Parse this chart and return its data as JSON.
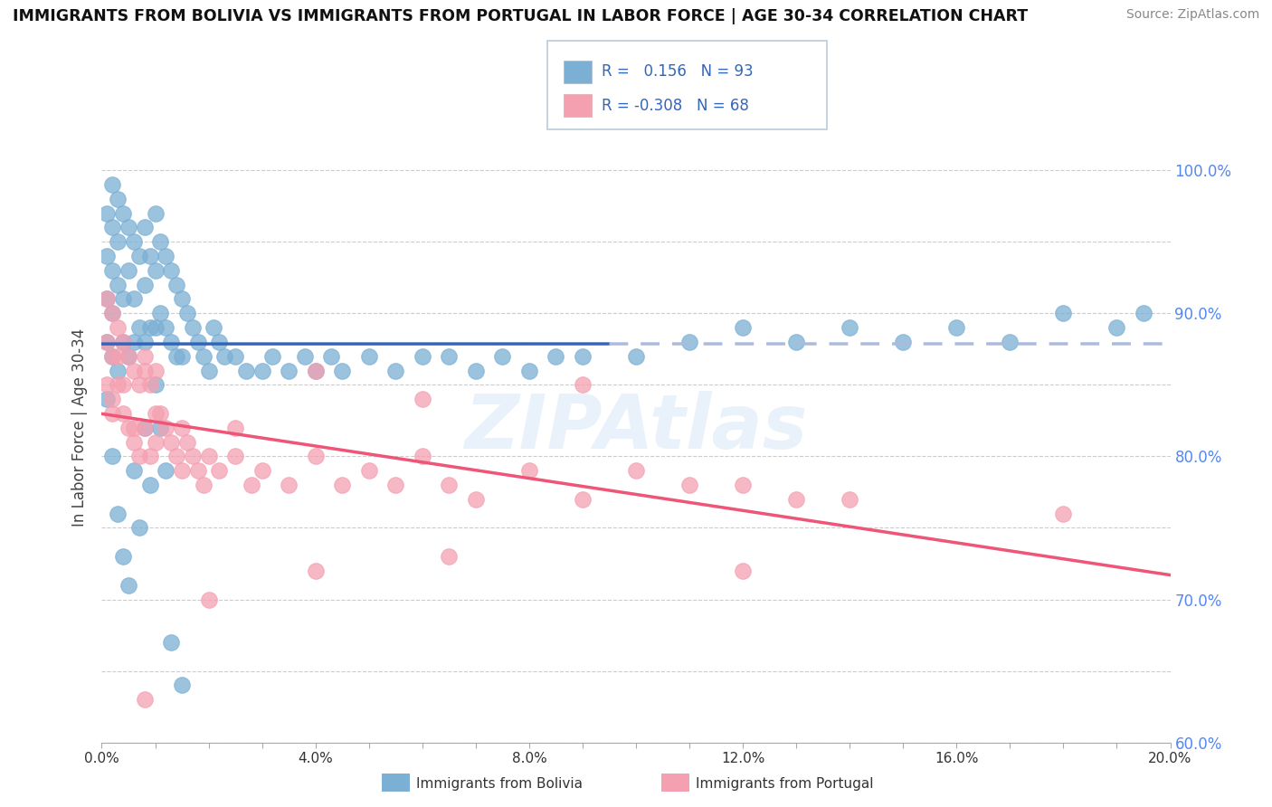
{
  "title": "IMMIGRANTS FROM BOLIVIA VS IMMIGRANTS FROM PORTUGAL IN LABOR FORCE | AGE 30-34 CORRELATION CHART",
  "source": "Source: ZipAtlas.com",
  "ylabel": "In Labor Force | Age 30-34",
  "R_bolivia": 0.156,
  "N_bolivia": 93,
  "R_portugal": -0.308,
  "N_portugal": 68,
  "legend_bolivia": "Immigrants from Bolivia",
  "legend_portugal": "Immigrants from Portugal",
  "xlim": [
    0.0,
    0.2
  ],
  "ylim": [
    0.6,
    1.04
  ],
  "color_bolivia": "#7BAFD4",
  "color_portugal": "#F4A0B0",
  "line_bolivia_solid": "#3366BB",
  "line_bolivia_dash": "#AABBDD",
  "line_portugal": "#EE5577",
  "bolivia_x": [
    0.001,
    0.001,
    0.001,
    0.001,
    0.002,
    0.002,
    0.002,
    0.002,
    0.002,
    0.003,
    0.003,
    0.003,
    0.003,
    0.004,
    0.004,
    0.004,
    0.005,
    0.005,
    0.005,
    0.006,
    0.006,
    0.006,
    0.007,
    0.007,
    0.008,
    0.008,
    0.008,
    0.009,
    0.009,
    0.01,
    0.01,
    0.01,
    0.011,
    0.011,
    0.012,
    0.012,
    0.013,
    0.013,
    0.014,
    0.014,
    0.015,
    0.015,
    0.016,
    0.017,
    0.018,
    0.019,
    0.02,
    0.021,
    0.022,
    0.023,
    0.025,
    0.027,
    0.03,
    0.032,
    0.035,
    0.038,
    0.04,
    0.043,
    0.045,
    0.05,
    0.055,
    0.06,
    0.065,
    0.07,
    0.075,
    0.08,
    0.085,
    0.09,
    0.1,
    0.11,
    0.12,
    0.13,
    0.14,
    0.15,
    0.16,
    0.17,
    0.18,
    0.19,
    0.195,
    0.001,
    0.002,
    0.003,
    0.004,
    0.005,
    0.006,
    0.007,
    0.008,
    0.009,
    0.01,
    0.011,
    0.012,
    0.013,
    0.015
  ],
  "bolivia_y": [
    0.97,
    0.94,
    0.91,
    0.88,
    0.99,
    0.96,
    0.93,
    0.9,
    0.87,
    0.98,
    0.95,
    0.92,
    0.86,
    0.97,
    0.91,
    0.88,
    0.96,
    0.93,
    0.87,
    0.95,
    0.91,
    0.88,
    0.94,
    0.89,
    0.96,
    0.92,
    0.88,
    0.94,
    0.89,
    0.97,
    0.93,
    0.89,
    0.95,
    0.9,
    0.94,
    0.89,
    0.93,
    0.88,
    0.92,
    0.87,
    0.91,
    0.87,
    0.9,
    0.89,
    0.88,
    0.87,
    0.86,
    0.89,
    0.88,
    0.87,
    0.87,
    0.86,
    0.86,
    0.87,
    0.86,
    0.87,
    0.86,
    0.87,
    0.86,
    0.87,
    0.86,
    0.87,
    0.87,
    0.86,
    0.87,
    0.86,
    0.87,
    0.87,
    0.87,
    0.88,
    0.89,
    0.88,
    0.89,
    0.88,
    0.89,
    0.88,
    0.9,
    0.89,
    0.9,
    0.84,
    0.8,
    0.76,
    0.73,
    0.71,
    0.79,
    0.75,
    0.82,
    0.78,
    0.85,
    0.82,
    0.79,
    0.67,
    0.64
  ],
  "portugal_x": [
    0.001,
    0.001,
    0.002,
    0.002,
    0.002,
    0.003,
    0.003,
    0.004,
    0.004,
    0.005,
    0.005,
    0.006,
    0.006,
    0.007,
    0.007,
    0.008,
    0.008,
    0.009,
    0.009,
    0.01,
    0.01,
    0.011,
    0.012,
    0.013,
    0.014,
    0.015,
    0.016,
    0.017,
    0.018,
    0.019,
    0.02,
    0.022,
    0.025,
    0.028,
    0.03,
    0.035,
    0.04,
    0.045,
    0.05,
    0.055,
    0.06,
    0.065,
    0.07,
    0.08,
    0.09,
    0.1,
    0.11,
    0.12,
    0.13,
    0.14,
    0.09,
    0.06,
    0.04,
    0.025,
    0.015,
    0.01,
    0.008,
    0.006,
    0.004,
    0.003,
    0.002,
    0.001,
    0.18,
    0.12,
    0.065,
    0.04,
    0.02,
    0.008
  ],
  "portugal_y": [
    0.88,
    0.85,
    0.9,
    0.87,
    0.83,
    0.89,
    0.85,
    0.88,
    0.83,
    0.87,
    0.82,
    0.86,
    0.81,
    0.85,
    0.8,
    0.87,
    0.82,
    0.85,
    0.8,
    0.86,
    0.81,
    0.83,
    0.82,
    0.81,
    0.8,
    0.82,
    0.81,
    0.8,
    0.79,
    0.78,
    0.8,
    0.79,
    0.8,
    0.78,
    0.79,
    0.78,
    0.8,
    0.78,
    0.79,
    0.78,
    0.8,
    0.78,
    0.77,
    0.79,
    0.77,
    0.79,
    0.78,
    0.78,
    0.77,
    0.77,
    0.85,
    0.84,
    0.86,
    0.82,
    0.79,
    0.83,
    0.86,
    0.82,
    0.85,
    0.87,
    0.84,
    0.91,
    0.76,
    0.72,
    0.73,
    0.72,
    0.7,
    0.63
  ]
}
